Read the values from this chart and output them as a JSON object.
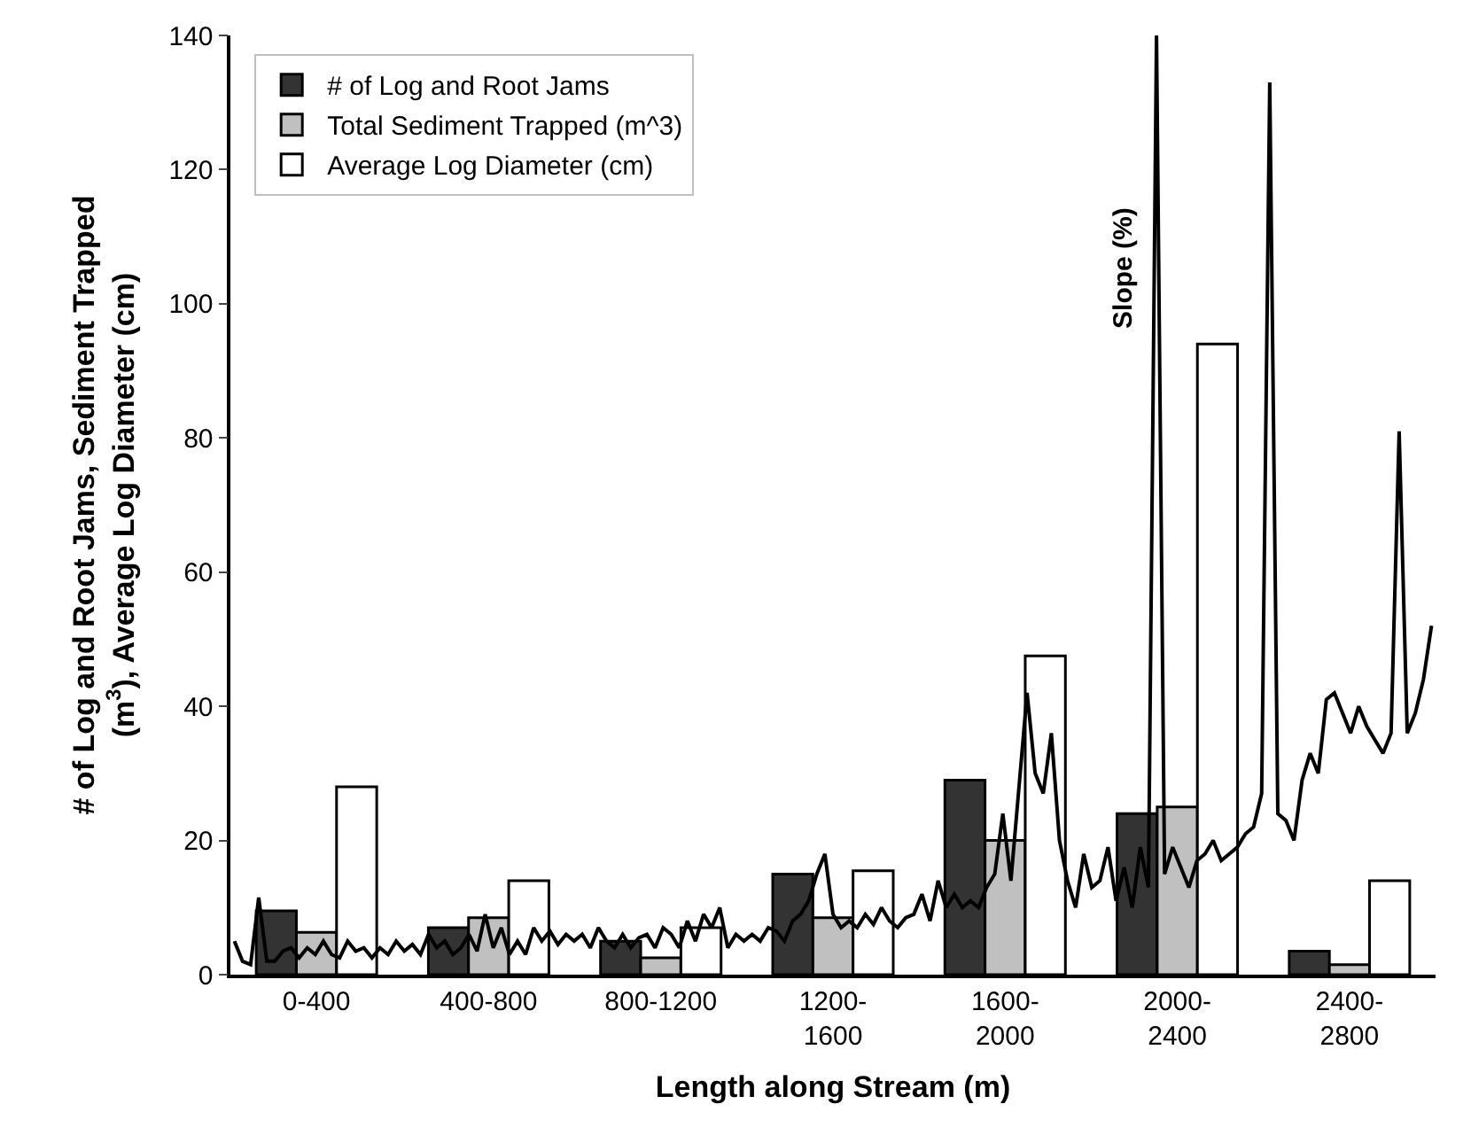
{
  "chart_data": [
    {
      "type": "bar",
      "xlabel": "Length along Stream (m)",
      "ylabel": "# of Log and Root Jams, Sediment Trapped\n(m$^{3}$), Average Log Diameter (cm)",
      "categories": [
        "0-400",
        "400-800",
        "800-1200",
        "1200-\n1600",
        "1600-\n2000",
        "2000-\n2400",
        "2400-\n2800"
      ],
      "series": [
        {
          "name": "# of Log and Root Jams",
          "color": "#333333",
          "values": [
            9.5,
            7,
            5,
            15,
            29,
            24,
            3.5
          ]
        },
        {
          "name": "Total Sediment Trapped (m^3)",
          "color": "#c0c0c0",
          "values": [
            6.3,
            8.5,
            2.5,
            8.5,
            20,
            25,
            1.5
          ]
        },
        {
          "name": "Average Log Diameter (cm)",
          "color": "#ffffff",
          "values": [
            28,
            14,
            7,
            15.5,
            47.5,
            94,
            14
          ]
        }
      ],
      "ylim": [
        0,
        140
      ],
      "yticks": [
        0,
        20,
        40,
        60,
        80,
        100,
        120,
        140
      ],
      "legend": "top left"
    },
    {
      "type": "line",
      "categories": [
        null,
        null,
        null,
        null,
        null,
        null,
        null,
        null,
        null,
        null,
        null,
        null,
        null,
        null,
        null,
        null,
        null,
        null,
        null,
        null,
        null,
        null,
        null,
        null,
        null,
        null,
        null,
        null,
        null,
        null,
        null,
        null,
        null,
        null,
        null,
        null,
        null,
        null,
        null,
        null,
        null,
        null,
        null,
        null,
        null,
        null,
        null,
        null,
        null,
        null,
        null,
        null,
        null,
        null,
        null,
        null,
        null,
        null,
        null,
        null,
        null,
        null,
        null,
        null,
        null,
        null,
        null,
        null,
        null,
        null,
        null,
        null,
        null,
        null,
        null,
        null,
        null,
        null,
        null,
        null,
        null,
        null,
        null,
        null,
        null,
        null,
        null,
        null,
        null,
        null,
        null,
        null,
        null,
        null,
        null,
        null,
        null,
        null,
        null,
        null,
        null,
        null,
        null,
        null,
        null,
        null,
        null,
        null,
        null,
        null,
        null,
        null,
        null,
        null,
        null,
        null,
        null,
        null,
        null,
        null,
        null,
        null,
        null,
        null,
        null,
        null,
        null,
        null,
        null,
        null,
        null,
        null,
        null,
        null,
        null,
        null,
        null,
        null,
        null,
        null,
        null,
        null,
        null,
        null,
        null,
        null,
        null,
        null,
        null
      ],
      "series": [
        {
          "name": "Slope (%)",
          "color": "#000000",
          "values": [
            5,
            2,
            1.5,
            11.5,
            2,
            2,
            3.5,
            4,
            2.5,
            4,
            3,
            5,
            3,
            2.5,
            5,
            3.5,
            4,
            2.5,
            4,
            3,
            5,
            3.5,
            4.5,
            3,
            6,
            4,
            5,
            3,
            4,
            6,
            3.5,
            9,
            4,
            7,
            3,
            5,
            3,
            7,
            5,
            6.5,
            4.5,
            6,
            5,
            6,
            4,
            7,
            5,
            4,
            6,
            4,
            5.5,
            6,
            4,
            7,
            6,
            4,
            8,
            5,
            9,
            7,
            10,
            4,
            6,
            5,
            6,
            5,
            7,
            6.5,
            5,
            8,
            9,
            11,
            15,
            18,
            9,
            7,
            8,
            7,
            9,
            7.5,
            10,
            8,
            7,
            8.5,
            9,
            12,
            8,
            14,
            10,
            12,
            10,
            11,
            10,
            13,
            15,
            24,
            14,
            28,
            42,
            30,
            27,
            36,
            20,
            14,
            10,
            18,
            13,
            14,
            19,
            11,
            16,
            10,
            19,
            13,
            140,
            15,
            19,
            16,
            13,
            17,
            18,
            20,
            17,
            18,
            19,
            21,
            22,
            27,
            133,
            24,
            23,
            20,
            29,
            33,
            30,
            41,
            42,
            39,
            36,
            40,
            37,
            35,
            33,
            36,
            81,
            36,
            39,
            44,
            52
          ]
        }
      ],
      "ylim": [
        0,
        140
      ]
    }
  ]
}
